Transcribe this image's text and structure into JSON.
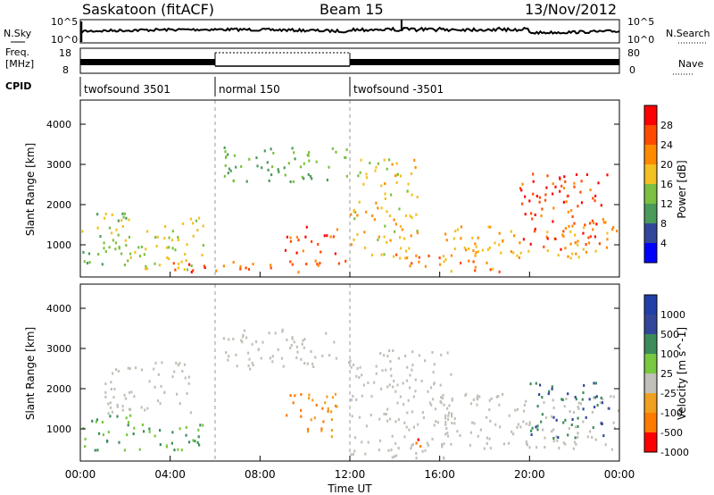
{
  "header": {
    "station": "Saskatoon (fitACF)",
    "beam": "Beam 15",
    "date": "13/Nov/2012"
  },
  "noise_panel": {
    "left_label": "N.Sky",
    "right_label": "N.Search",
    "left_ticks": [
      "10^5",
      "10^0"
    ],
    "right_ticks": [
      "10^5",
      "10^0"
    ]
  },
  "freq_panel": {
    "left_label_1": "Freq.",
    "left_label_2": "[MHz]",
    "right_label": "Nave",
    "left_ticks": [
      "18",
      "8"
    ],
    "right_ticks": [
      "80",
      "0"
    ]
  },
  "cpid": {
    "label": "CPID",
    "segments": [
      {
        "name": "twofsound 3501",
        "start_hour": 0,
        "end_hour": 6
      },
      {
        "name": "normal 150",
        "start_hour": 6,
        "end_hour": 12
      },
      {
        "name": "twofsound -3501",
        "start_hour": 12,
        "end_hour": 24
      }
    ]
  },
  "power_panel": {
    "ylabel": "Slant Range [km]",
    "yticks": [
      "1000",
      "2000",
      "3000",
      "4000"
    ],
    "colorbar_label": "Power [dB]",
    "colorbar_ticks": [
      "4",
      "8",
      "12",
      "16",
      "20",
      "24",
      "28"
    ],
    "colors": [
      "#0000ff",
      "#33479a",
      "#4a9a5a",
      "#7cc040",
      "#f2c020",
      "#ff8a00",
      "#ff4a00",
      "#ff0000"
    ]
  },
  "velocity_panel": {
    "ylabel": "Slant Range [km]",
    "yticks": [
      "1000",
      "2000",
      "3000",
      "4000"
    ],
    "colorbar_label": "Velocity [m s^-1]",
    "colorbar_ticks": [
      "1000",
      "500",
      "100",
      "25",
      "-25",
      "-100",
      "-500",
      "-1000"
    ],
    "colors": [
      "#2040a8",
      "#33479a",
      "#3c8c5a",
      "#78c840",
      "#c0c0b8",
      "#f0a020",
      "#ff7a00",
      "#ff0000"
    ]
  },
  "xaxis": {
    "label": "Time UT",
    "ticks": [
      "00:00",
      "04:00",
      "08:00",
      "12:00",
      "16:00",
      "20:00",
      "00:00"
    ]
  },
  "chart_data": [
    {
      "type": "heatmap",
      "title": "Saskatoon (fitACF) Beam 15 13/Nov/2012",
      "xlabel": "Time UT",
      "ylabel": "Slant Range [km]",
      "xlim": [
        0,
        24
      ],
      "ylim": [
        200,
        4600
      ],
      "quantity": "Power [dB]",
      "colorbar_range": [
        0,
        32
      ],
      "regions": [
        {
          "x": [
            0.0,
            2.2
          ],
          "y": [
            500,
            2000
          ],
          "value": 14
        },
        {
          "x": [
            1.8,
            5.5
          ],
          "y": [
            400,
            1700
          ],
          "value": 16
        },
        {
          "x": [
            4.0,
            5.8
          ],
          "y": [
            350,
            700
          ],
          "value": 28
        },
        {
          "x": [
            6.0,
            12.0
          ],
          "y": [
            350,
            650
          ],
          "value": 24
        },
        {
          "x": [
            6.2,
            12.0
          ],
          "y": [
            2600,
            3500
          ],
          "value": 12
        },
        {
          "x": [
            9.0,
            11.5
          ],
          "y": [
            800,
            1500
          ],
          "value": 26
        },
        {
          "x": [
            12.0,
            15.0
          ],
          "y": [
            700,
            3200
          ],
          "value": 18
        },
        {
          "x": [
            14.0,
            19.0
          ],
          "y": [
            350,
            800
          ],
          "value": 22
        },
        {
          "x": [
            16.0,
            24.0
          ],
          "y": [
            700,
            1500
          ],
          "value": 20
        },
        {
          "x": [
            19.5,
            23.5
          ],
          "y": [
            900,
            2800
          ],
          "value": 26
        }
      ]
    },
    {
      "type": "heatmap",
      "title": "",
      "xlabel": "Time UT",
      "ylabel": "Slant Range [km]",
      "xlim": [
        0,
        24
      ],
      "ylim": [
        200,
        4600
      ],
      "quantity": "Velocity [m s^-1]",
      "colorbar_levels": [
        -1000,
        -500,
        -100,
        -25,
        25,
        100,
        500,
        1000
      ],
      "regions": [
        {
          "x": [
            0.0,
            2.5
          ],
          "y": [
            500,
            1400
          ],
          "value": 100
        },
        {
          "x": [
            2.0,
            5.5
          ],
          "y": [
            500,
            1200
          ],
          "value": 100
        },
        {
          "x": [
            1.0,
            5.0
          ],
          "y": [
            1400,
            2700
          ],
          "value": 0
        },
        {
          "x": [
            6.3,
            12.0
          ],
          "y": [
            2500,
            3500
          ],
          "value": 0
        },
        {
          "x": [
            9.0,
            11.5
          ],
          "y": [
            800,
            1900
          ],
          "value": -100
        },
        {
          "x": [
            12.0,
            16.5
          ],
          "y": [
            300,
            3000
          ],
          "value": 0
        },
        {
          "x": [
            16.0,
            24.0
          ],
          "y": [
            500,
            1900
          ],
          "value": 0
        },
        {
          "x": [
            20.0,
            23.5
          ],
          "y": [
            800,
            2200
          ],
          "value": 500
        },
        {
          "x": [
            14.5,
            15.5
          ],
          "y": [
            600,
            900
          ],
          "value": -500
        }
      ]
    }
  ]
}
